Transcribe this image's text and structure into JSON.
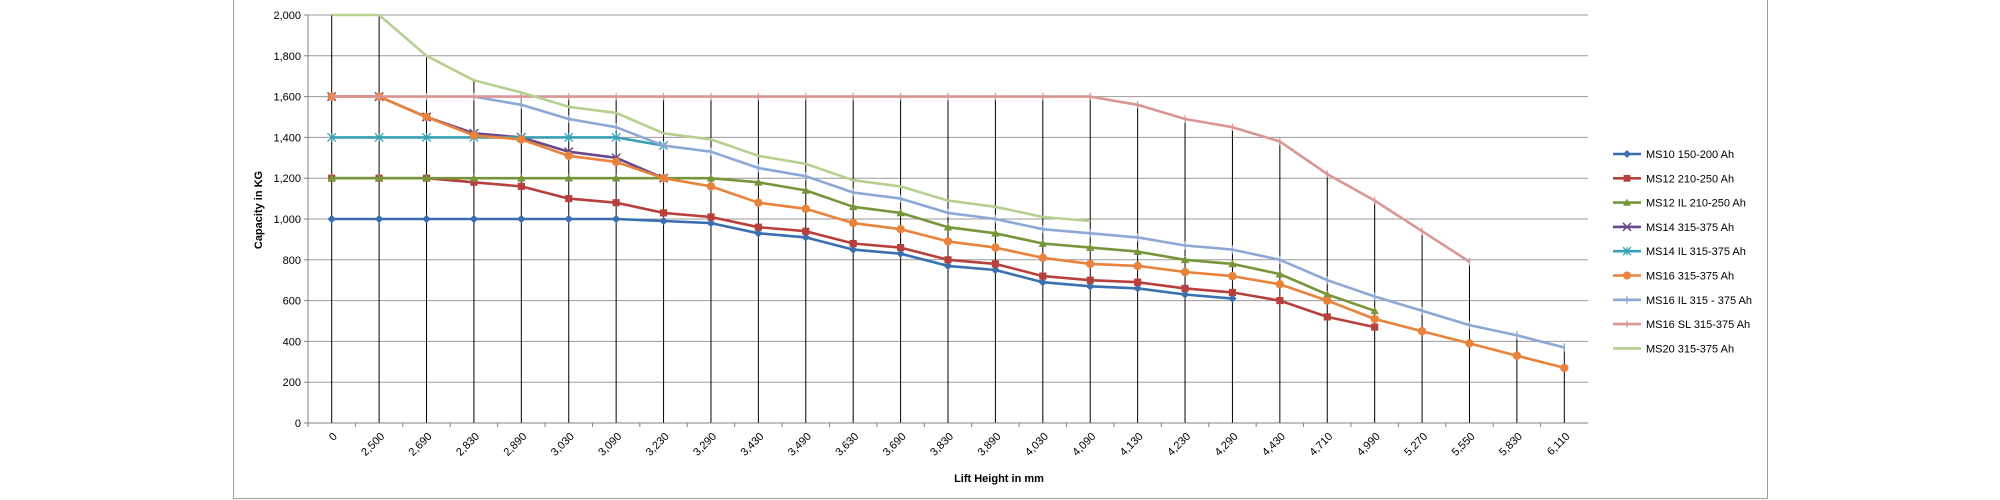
{
  "chart_data": {
    "type": "line",
    "title": "",
    "xlabel": "Lift Height in mm",
    "ylabel": "Capacity in KG",
    "ylim": [
      0,
      2000
    ],
    "yticks": [
      "0",
      "200",
      "400",
      "600",
      "800",
      "1,000",
      "1,200",
      "1,400",
      "1,600",
      "1,800",
      "2,000"
    ],
    "grid": "horizontal",
    "legend_position": "right",
    "categories": [
      "0",
      "2,500",
      "2,690",
      "2,830",
      "2,890",
      "3,030",
      "3,090",
      "3,230",
      "3,290",
      "3,430",
      "3,490",
      "3,630",
      "3,690",
      "3,830",
      "3,890",
      "4,030",
      "4,090",
      "4,130",
      "4,230",
      "4,290",
      "4,430",
      "4,710",
      "4,990",
      "5,270",
      "5,550",
      "5,830",
      "6,110"
    ],
    "series": [
      {
        "name": "MS10 150-200 Ah",
        "color": "#3a6fb0",
        "marker": "diamond",
        "values": [
          1000,
          1000,
          1000,
          1000,
          1000,
          1000,
          1000,
          990,
          980,
          930,
          910,
          850,
          830,
          770,
          750,
          690,
          670,
          660,
          630,
          610,
          null,
          null,
          null,
          null,
          null,
          null,
          null
        ]
      },
      {
        "name": "MS12 210-250 Ah",
        "color": "#b8403c",
        "marker": "square",
        "values": [
          1200,
          1200,
          1200,
          1180,
          1160,
          1100,
          1080,
          1030,
          1010,
          960,
          940,
          880,
          860,
          800,
          780,
          720,
          700,
          690,
          660,
          640,
          600,
          520,
          470,
          null,
          null,
          null,
          null
        ]
      },
      {
        "name": "MS12 IL 210-250 Ah",
        "color": "#77963b",
        "marker": "triangle",
        "values": [
          1200,
          1200,
          1200,
          1200,
          1200,
          1200,
          1200,
          1200,
          1200,
          1180,
          1140,
          1060,
          1030,
          960,
          930,
          880,
          860,
          840,
          800,
          780,
          730,
          630,
          550,
          null,
          null,
          null,
          null
        ]
      },
      {
        "name": "MS14 315-375 Ah",
        "color": "#6a4a8c",
        "marker": "x",
        "values": [
          1600,
          1600,
          1500,
          1420,
          1400,
          1330,
          1300,
          1200,
          null,
          null,
          null,
          null,
          null,
          null,
          null,
          null,
          null,
          null,
          null,
          null,
          null,
          null,
          null,
          null,
          null,
          null,
          null
        ]
      },
      {
        "name": "MS14 IL 315-375 Ah",
        "color": "#3aa0b5",
        "marker": "star",
        "values": [
          1400,
          1400,
          1400,
          1400,
          1400,
          1400,
          1400,
          1360,
          null,
          null,
          null,
          null,
          null,
          null,
          null,
          null,
          null,
          null,
          null,
          null,
          null,
          null,
          null,
          null,
          null,
          null,
          null
        ]
      },
      {
        "name": "MS16 315-375 Ah",
        "color": "#e9823a",
        "marker": "circle",
        "values": [
          1600,
          1600,
          1500,
          1410,
          1390,
          1310,
          1280,
          1200,
          1160,
          1080,
          1050,
          980,
          950,
          890,
          860,
          810,
          780,
          770,
          740,
          720,
          680,
          600,
          510,
          450,
          390,
          330,
          270
        ]
      },
      {
        "name": "MS16 IL 315 - 375 Ah",
        "color": "#8ea8d6",
        "marker": "plus",
        "values": [
          null,
          null,
          null,
          1600,
          1560,
          1490,
          1450,
          1360,
          1330,
          1250,
          1210,
          1130,
          1100,
          1030,
          1000,
          950,
          930,
          910,
          870,
          850,
          800,
          700,
          620,
          550,
          480,
          430,
          370
        ]
      },
      {
        "name": "MS16 SL 315-375 Ah",
        "color": "#d99694",
        "marker": "dash",
        "values": [
          1600,
          1600,
          1600,
          1600,
          1600,
          1600,
          1600,
          1600,
          1600,
          1600,
          1600,
          1600,
          1600,
          1600,
          1600,
          1600,
          1600,
          1560,
          1490,
          1450,
          1380,
          1220,
          1090,
          940,
          790,
          null,
          null
        ]
      },
      {
        "name": "MS20 315-375 Ah",
        "color": "#b6d08f",
        "marker": "none",
        "values": [
          2000,
          2000,
          1800,
          1680,
          1620,
          1550,
          1520,
          1420,
          1390,
          1310,
          1270,
          1190,
          1160,
          1090,
          1060,
          1010,
          990,
          null,
          null,
          null,
          null,
          null,
          null,
          null,
          null,
          null,
          null
        ]
      }
    ]
  }
}
